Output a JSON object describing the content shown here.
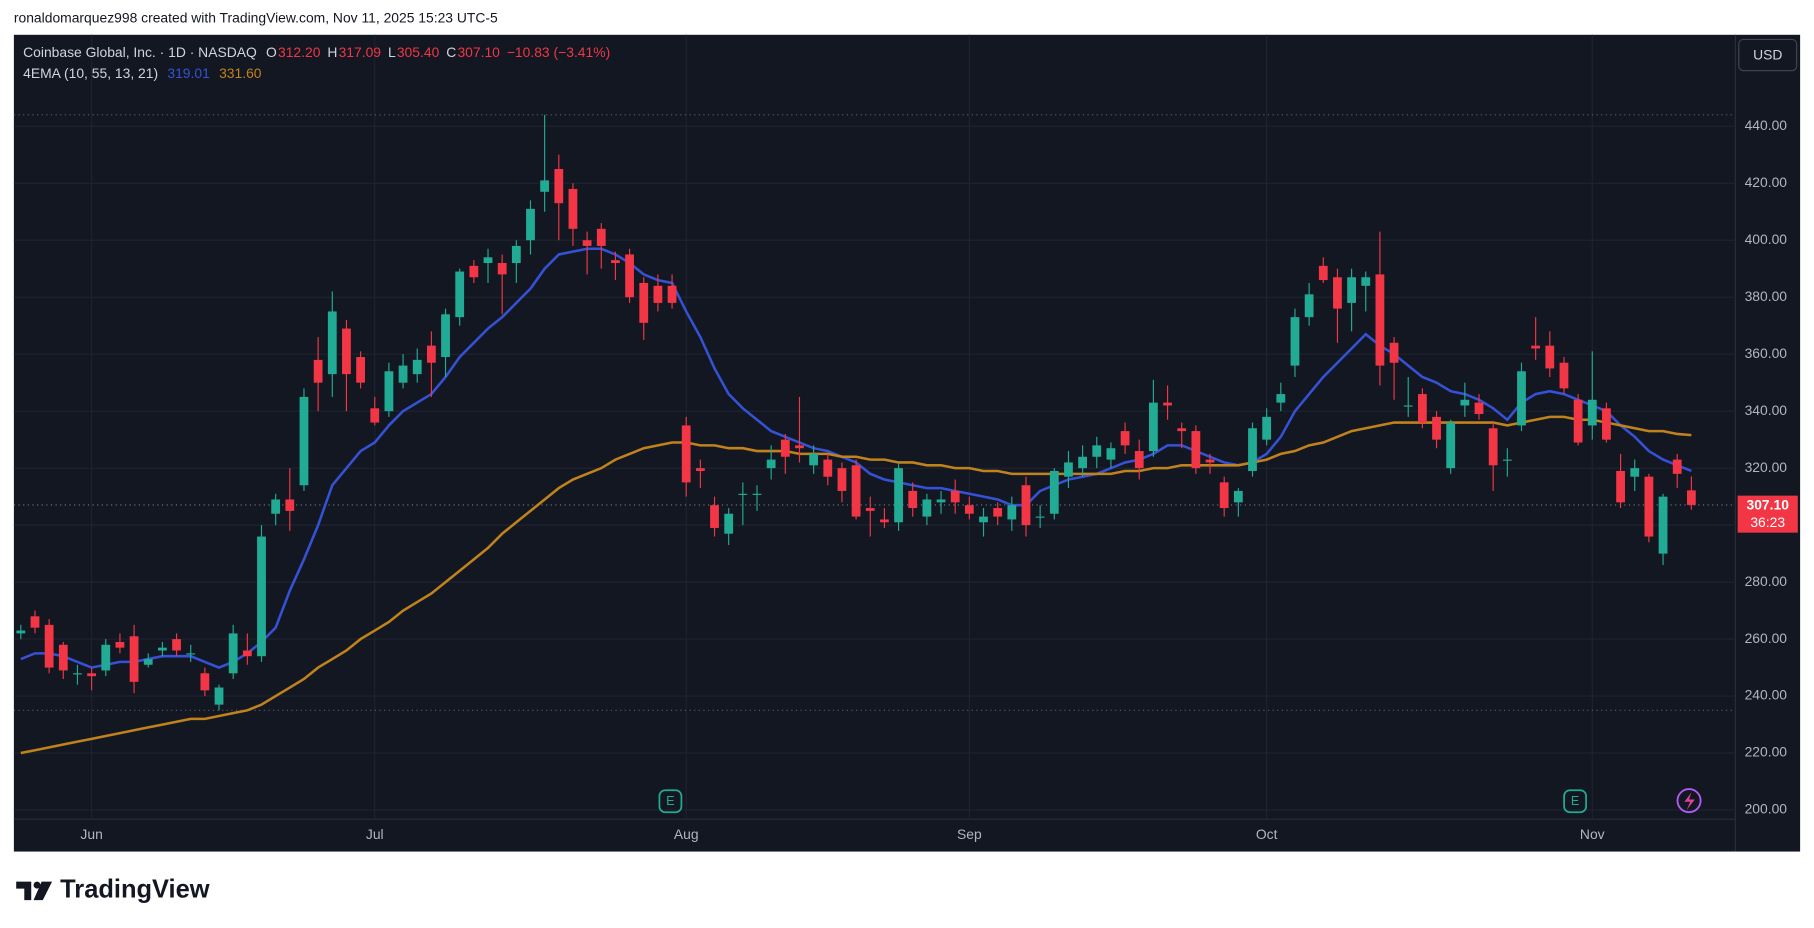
{
  "header": "ronaldomarquez998 created with TradingView.com, Nov 11, 2025 15:23 UTC-5",
  "brand": "TradingView",
  "chart_data": {
    "type": "candlestick",
    "symbol": "Coinbase Global, Inc. · 1D · NASDAQ",
    "ohlc_legend": [
      {
        "label": "O",
        "value": "312.20"
      },
      {
        "label": "H",
        "value": "317.09"
      },
      {
        "label": "L",
        "value": "305.40"
      },
      {
        "label": "C",
        "value": "307.10"
      }
    ],
    "change": "−10.83 (−3.41%)",
    "indicator": "4EMA (10, 55, 13, 21)",
    "indicator_values": [
      "319.01",
      "331.60"
    ],
    "currency": "USD",
    "last_price_label": "307.10",
    "countdown": "36:23",
    "earnings_markers": [
      "E",
      "E"
    ],
    "up_color": "#22ab94",
    "down_color": "#f23645",
    "categories": [
      null,
      null,
      null,
      null,
      null,
      "Jun",
      null,
      null,
      null,
      null,
      null,
      null,
      null,
      null,
      null,
      null,
      null,
      null,
      null,
      null,
      null,
      null,
      null,
      null,
      null,
      "Jul",
      null,
      null,
      null,
      null,
      null,
      null,
      null,
      null,
      null,
      null,
      null,
      null,
      null,
      null,
      null,
      null,
      null,
      null,
      null,
      null,
      null,
      "Aug",
      null,
      null,
      null,
      null,
      null,
      null,
      null,
      null,
      null,
      null,
      null,
      null,
      null,
      null,
      null,
      null,
      null,
      null,
      null,
      "Sep",
      null,
      null,
      null,
      null,
      null,
      null,
      null,
      null,
      null,
      null,
      null,
      null,
      null,
      null,
      null,
      null,
      null,
      null,
      null,
      null,
      "Oct",
      null,
      null,
      null,
      null,
      null,
      null,
      null,
      null,
      null,
      null,
      null,
      null,
      null,
      null,
      null,
      null,
      null,
      null,
      null,
      null,
      null,
      null,
      "Nov",
      null,
      null,
      null,
      null,
      null,
      null,
      null
    ],
    "open": [
      262,
      268,
      265,
      258,
      248,
      248,
      249,
      259,
      261,
      251,
      256,
      260,
      255,
      248,
      237,
      248,
      256,
      254,
      304,
      309,
      314,
      358,
      353,
      369,
      359,
      341,
      340,
      350,
      353,
      363,
      359,
      373,
      391,
      392,
      392,
      392,
      400,
      417,
      425,
      418,
      400,
      404,
      393,
      395,
      385,
      384,
      384,
      335,
      320,
      307,
      297,
      311,
      311,
      320,
      330,
      328,
      321,
      323,
      320,
      321,
      306,
      302,
      301,
      312,
      303,
      308,
      312,
      307,
      301,
      306,
      302,
      314,
      303,
      304,
      317,
      320,
      324,
      323,
      333,
      326,
      326,
      343,
      334,
      333,
      323,
      315,
      308,
      319,
      330,
      343,
      356,
      373,
      391,
      387,
      378,
      384,
      388,
      364,
      342,
      346,
      338,
      320,
      342,
      343,
      334,
      323,
      335,
      363,
      363,
      357,
      344,
      335,
      341,
      319,
      317,
      317,
      290,
      323,
      312.2
    ],
    "high": [
      265,
      270,
      267,
      259,
      251,
      250,
      260,
      262,
      265,
      255,
      259,
      262,
      258,
      250,
      244,
      265,
      262,
      300,
      311,
      320,
      348,
      366,
      382,
      372,
      361,
      345,
      357,
      360,
      362,
      368,
      376,
      390,
      393,
      397,
      395,
      400,
      414,
      444,
      430,
      420,
      403,
      406,
      396,
      397,
      387,
      388,
      388,
      338,
      323,
      310,
      306,
      315,
      314,
      328,
      332,
      345,
      328,
      325,
      322,
      323,
      310,
      306,
      322,
      315,
      311,
      312,
      316,
      310,
      306,
      308,
      310,
      317,
      307,
      320,
      326,
      328,
      331,
      329,
      336,
      330,
      351,
      349,
      336,
      335,
      325,
      317,
      313,
      336,
      341,
      350,
      376,
      385,
      394,
      390,
      390,
      389,
      403,
      366,
      352,
      348,
      340,
      337,
      350,
      346,
      336,
      327,
      357,
      373,
      368,
      359,
      346,
      361,
      343,
      325,
      323,
      318,
      311,
      325,
      317.09
    ],
    "low": [
      260,
      262,
      248,
      246,
      244,
      242,
      247,
      255,
      241,
      250,
      254,
      254,
      252,
      240,
      235,
      246,
      251,
      252,
      300,
      298,
      312,
      340,
      345,
      340,
      348,
      335,
      338,
      348,
      350,
      345,
      352,
      370,
      385,
      385,
      374,
      385,
      395,
      410,
      400,
      398,
      388,
      390,
      386,
      378,
      365,
      375,
      376,
      310,
      313,
      296,
      293,
      300,
      305,
      316,
      318,
      322,
      318,
      314,
      308,
      302,
      296,
      299,
      298,
      303,
      300,
      304,
      304,
      302,
      296,
      300,
      298,
      296,
      299,
      302,
      313,
      317,
      320,
      320,
      325,
      316,
      324,
      337,
      327,
      318,
      318,
      303,
      303,
      317,
      328,
      340,
      352,
      370,
      385,
      364,
      368,
      375,
      349,
      344,
      338,
      334,
      327,
      318,
      338,
      337,
      312,
      317,
      333,
      358,
      352,
      346,
      328,
      330,
      329,
      306,
      312,
      294,
      286,
      313,
      305.4
    ],
    "close": [
      263,
      264,
      250,
      249,
      248,
      247,
      258,
      257,
      245,
      253,
      257,
      256,
      255,
      242,
      243,
      262,
      254,
      296,
      309,
      305,
      345,
      350,
      375,
      353,
      350,
      336,
      354,
      356,
      358,
      357,
      374,
      389,
      387,
      394,
      388,
      398,
      411,
      421,
      413,
      404,
      398,
      398,
      392,
      380,
      371,
      378,
      378,
      315,
      319,
      299,
      304,
      311,
      311,
      323,
      324,
      327,
      325,
      317,
      312,
      303,
      305,
      301,
      320,
      306,
      309,
      309,
      308,
      304,
      303,
      303,
      307,
      300,
      303,
      319,
      322,
      324,
      328,
      327,
      328,
      320,
      343,
      342,
      333,
      320,
      322,
      306,
      312,
      334,
      338,
      346,
      373,
      381,
      386,
      376,
      387,
      387,
      356,
      357,
      342,
      336,
      330,
      336,
      344,
      339,
      321,
      323,
      354,
      362,
      355,
      348,
      329,
      344,
      330,
      308,
      320,
      296,
      310,
      318,
      307.1
    ],
    "lines": [
      {
        "color": "#3552d6",
        "values": [
          253,
          255,
          255,
          254,
          252,
          250,
          251,
          252,
          252,
          253,
          254,
          254,
          254,
          252,
          250,
          252,
          255,
          259,
          264,
          277,
          288,
          300,
          314,
          320,
          326,
          329,
          335,
          340,
          343,
          346,
          352,
          359,
          364,
          369,
          373,
          378,
          383,
          390,
          395,
          396,
          397,
          397,
          395,
          392,
          388,
          386,
          385,
          375,
          366,
          355,
          346,
          341,
          337,
          333,
          331,
          329,
          327,
          326,
          324,
          322,
          318,
          316,
          315,
          314,
          313,
          313,
          312,
          311,
          310,
          309,
          307,
          307,
          312,
          314,
          316,
          317,
          318,
          320,
          322,
          323,
          325,
          328,
          328,
          326,
          324,
          322,
          321,
          322,
          325,
          331,
          340,
          346,
          352,
          357,
          362,
          367,
          363,
          360,
          356,
          352,
          350,
          347,
          346,
          344,
          341,
          337,
          343,
          346,
          347,
          346,
          344,
          342,
          340,
          335,
          331,
          326,
          323,
          321,
          319.01
        ]
      },
      {
        "color": "#c0821c",
        "values": [
          220,
          221,
          222,
          223,
          224,
          225,
          226,
          227,
          228,
          229,
          230,
          231,
          232,
          232,
          233,
          234,
          235,
          237,
          240,
          243,
          246,
          250,
          253,
          256,
          260,
          263,
          266,
          270,
          273,
          276,
          280,
          284,
          288,
          292,
          297,
          301,
          305,
          309,
          313,
          316,
          318,
          320,
          323,
          325,
          327,
          328,
          329,
          329,
          328,
          328,
          327,
          327,
          326,
          326,
          326,
          325,
          325,
          325,
          324,
          324,
          323,
          323,
          322,
          322,
          321,
          321,
          320,
          320,
          319,
          319,
          318,
          318,
          318,
          318,
          318,
          318,
          318,
          318,
          319,
          319,
          320,
          320,
          321,
          321,
          321,
          321,
          321,
          322,
          323,
          325,
          326,
          328,
          329,
          331,
          333,
          334,
          335,
          336,
          336,
          336,
          336,
          336,
          336,
          336,
          336,
          335,
          336,
          337,
          338,
          338,
          337,
          337,
          336,
          335,
          334,
          333,
          333,
          332,
          331.6
        ]
      }
    ],
    "ylim": [
      196.8,
      472.1
    ],
    "yticks": [
      {
        "value": 200,
        "label": "200.00"
      },
      {
        "value": 220,
        "label": "220.00"
      },
      {
        "value": 240,
        "label": "240.00"
      },
      {
        "value": 260,
        "label": "260.00"
      },
      {
        "value": 280,
        "label": "280.00"
      },
      {
        "value": 300,
        "label": "300.00"
      },
      {
        "value": 320,
        "label": "320.00"
      },
      {
        "value": 340,
        "label": "340.00"
      },
      {
        "value": 360,
        "label": "360.00"
      },
      {
        "value": 380,
        "label": "380.00"
      },
      {
        "value": 400,
        "label": "400.00"
      },
      {
        "value": 420,
        "label": "420.00"
      },
      {
        "value": 440,
        "label": "440.00"
      }
    ],
    "grid": true
  }
}
